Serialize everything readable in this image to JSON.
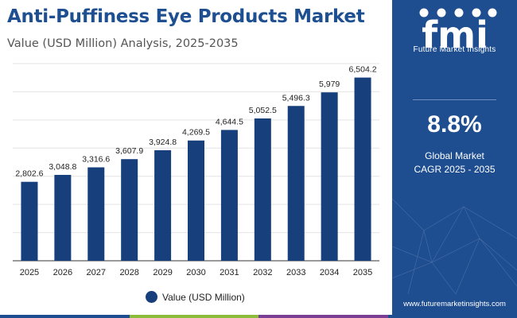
{
  "header": {
    "title": "Anti-Puffiness Eye Products Market",
    "subtitle": "Value (USD Million) Analysis, 2025-2035"
  },
  "legend": {
    "label": "Value (USD Million)"
  },
  "colors": {
    "bar": "#173f7c",
    "title": "#1d4f91",
    "panel": "#1e4d90",
    "footer": [
      "#1e4d90",
      "#8bbd3a",
      "#7a3f95",
      "#1e4d90"
    ]
  },
  "panel": {
    "brand_letters": "fmi",
    "brand_name": "Future Market Insights",
    "cagr_value": "8.8%",
    "cagr_label_line1": "Global Market",
    "cagr_label_line2": "CAGR 2025 - 2035",
    "website": "www.futuremarketinsights.com"
  },
  "chart_data": {
    "type": "bar",
    "categories": [
      "2025",
      "2026",
      "2027",
      "2028",
      "2029",
      "2030",
      "2031",
      "2032",
      "2033",
      "2034",
      "2035"
    ],
    "series": [
      {
        "name": "Value (USD Million)",
        "values": [
          2802.6,
          3048.8,
          3316.6,
          3607.9,
          3924.8,
          4269.5,
          4644.5,
          5052.5,
          5496.3,
          5979,
          6504.2
        ],
        "labels": [
          "2,802.6",
          "3,048.8",
          "3,316.6",
          "3,607.9",
          "3,924.8",
          "4,269.5",
          "4,644.5",
          "5,052.5",
          "5,496.3",
          "5,979",
          "6,504.2"
        ]
      }
    ],
    "ylim": [
      0,
      7000
    ],
    "grid": true,
    "legend_position": "bottom-center"
  }
}
